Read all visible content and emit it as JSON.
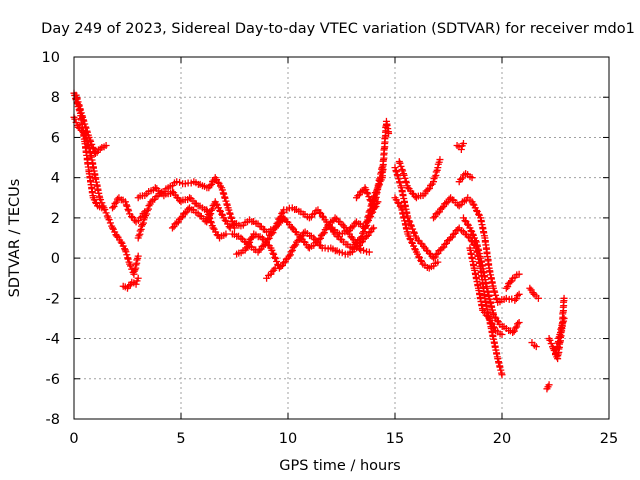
{
  "chart_data": {
    "type": "scatter",
    "title": "Day 249 of 2023, Sidereal Day-to-day VTEC variation (SDTVAR) for receiver mdo1",
    "xlabel": "GPS time / hours",
    "ylabel": "SDTVAR / TECUs",
    "xlim": [
      0,
      25
    ],
    "ylim": [
      -8,
      10
    ],
    "x_ticks": [
      0,
      5,
      10,
      15,
      20,
      25
    ],
    "y_ticks": [
      -8,
      -6,
      -4,
      -2,
      0,
      2,
      4,
      6,
      8,
      10
    ],
    "grid": true,
    "marker": "+",
    "color": "#ff0000",
    "series": [
      {
        "name": "SDTVAR",
        "tracks": [
          [
            [
              0.0,
              8.2
            ],
            [
              0.3,
              7.2
            ],
            [
              0.5,
              5.8
            ],
            [
              0.7,
              4.3
            ],
            [
              0.9,
              3.0
            ],
            [
              1.1,
              2.6
            ],
            [
              1.3,
              2.5
            ]
          ],
          [
            [
              0.0,
              7.0
            ],
            [
              0.2,
              6.5
            ],
            [
              0.5,
              6.2
            ],
            [
              0.8,
              5.1
            ],
            [
              1.0,
              4.0
            ],
            [
              1.2,
              3.0
            ],
            [
              1.4,
              2.5
            ],
            [
              1.6,
              2.0
            ],
            [
              1.8,
              1.5
            ],
            [
              2.0,
              1.1
            ],
            [
              2.2,
              0.8
            ],
            [
              2.4,
              0.4
            ],
            [
              2.6,
              -0.3
            ],
            [
              2.8,
              -0.8
            ],
            [
              3.0,
              0.1
            ]
          ],
          [
            [
              0.1,
              8.1
            ],
            [
              0.4,
              7.0
            ],
            [
              0.7,
              6.0
            ],
            [
              1.0,
              5.2
            ],
            [
              1.3,
              5.5
            ],
            [
              1.5,
              5.6
            ]
          ],
          [
            [
              2.3,
              -1.4
            ],
            [
              2.5,
              -1.5
            ],
            [
              2.7,
              -1.2
            ],
            [
              2.9,
              -1.3
            ],
            [
              3.0,
              -1.0
            ]
          ],
          [
            [
              1.8,
              2.5
            ],
            [
              2.1,
              3.0
            ],
            [
              2.4,
              2.8
            ],
            [
              2.6,
              2.2
            ],
            [
              2.9,
              1.8
            ],
            [
              3.1,
              2.0
            ],
            [
              3.3,
              2.3
            ]
          ],
          [
            [
              3.0,
              1.0
            ],
            [
              3.3,
              2.0
            ],
            [
              3.6,
              2.8
            ],
            [
              4.0,
              3.2
            ],
            [
              4.4,
              3.5
            ],
            [
              4.8,
              3.8
            ],
            [
              5.2,
              3.7
            ],
            [
              5.6,
              3.8
            ],
            [
              6.0,
              3.6
            ],
            [
              6.3,
              3.5
            ],
            [
              6.6,
              4.0
            ],
            [
              6.9,
              3.5
            ],
            [
              7.2,
              2.5
            ],
            [
              7.5,
              1.5
            ]
          ],
          [
            [
              3.0,
              3.0
            ],
            [
              3.4,
              3.2
            ],
            [
              3.8,
              3.5
            ],
            [
              4.2,
              3.1
            ],
            [
              4.6,
              3.3
            ],
            [
              5.0,
              2.8
            ],
            [
              5.4,
              3.0
            ],
            [
              5.8,
              2.6
            ],
            [
              6.2,
              2.4
            ],
            [
              6.5,
              1.5
            ],
            [
              6.8,
              1.0
            ],
            [
              7.1,
              1.2
            ]
          ],
          [
            [
              4.6,
              1.5
            ],
            [
              5.0,
              2.0
            ],
            [
              5.4,
              2.5
            ],
            [
              5.8,
              2.2
            ],
            [
              6.2,
              1.8
            ],
            [
              6.6,
              2.8
            ],
            [
              7.0,
              2.0
            ],
            [
              7.3,
              1.5
            ]
          ],
          [
            [
              7.4,
              1.2
            ],
            [
              7.8,
              1.0
            ],
            [
              8.2,
              0.6
            ],
            [
              8.6,
              0.3
            ],
            [
              9.0,
              0.8
            ],
            [
              9.4,
              1.5
            ],
            [
              9.8,
              2.0
            ],
            [
              10.2,
              1.5
            ],
            [
              10.6,
              1.0
            ],
            [
              11.0,
              0.5
            ],
            [
              11.4,
              0.8
            ],
            [
              11.8,
              1.5
            ],
            [
              12.2,
              2.0
            ],
            [
              12.6,
              1.6
            ],
            [
              13.0,
              1.0
            ],
            [
              13.4,
              0.4
            ],
            [
              13.8,
              0.3
            ]
          ],
          [
            [
              7.4,
              1.8
            ],
            [
              7.8,
              1.6
            ],
            [
              8.2,
              1.9
            ],
            [
              8.6,
              1.7
            ],
            [
              9.0,
              1.3
            ],
            [
              9.4,
              1.5
            ],
            [
              9.8,
              2.4
            ],
            [
              10.2,
              2.5
            ],
            [
              10.6,
              2.3
            ],
            [
              11.0,
              2.0
            ],
            [
              11.4,
              2.4
            ],
            [
              11.8,
              1.8
            ],
            [
              12.2,
              1.2
            ],
            [
              12.6,
              0.8
            ],
            [
              13.0,
              0.5
            ],
            [
              13.4,
              1.0
            ],
            [
              13.8,
              2.0
            ],
            [
              14.2,
              2.8
            ]
          ],
          [
            [
              7.6,
              0.2
            ],
            [
              8.0,
              0.4
            ],
            [
              8.4,
              1.2
            ],
            [
              8.8,
              1.0
            ],
            [
              9.2,
              0.5
            ],
            [
              9.6,
              -0.5
            ],
            [
              10.0,
              0.0
            ],
            [
              10.4,
              0.8
            ],
            [
              10.8,
              1.3
            ],
            [
              11.2,
              1.0
            ],
            [
              11.6,
              0.5
            ],
            [
              12.0,
              0.5
            ],
            [
              12.4,
              0.3
            ],
            [
              12.8,
              0.2
            ],
            [
              13.2,
              0.5
            ],
            [
              13.6,
              1.0
            ],
            [
              14.0,
              1.5
            ]
          ],
          [
            [
              9.0,
              -1.0
            ],
            [
              9.2,
              -0.8
            ],
            [
              9.4,
              -0.5
            ]
          ],
          [
            [
              12.0,
              1.5
            ],
            [
              12.4,
              1.2
            ],
            [
              12.8,
              1.3
            ],
            [
              13.2,
              1.8
            ],
            [
              13.6,
              1.5
            ],
            [
              14.0,
              3.0
            ],
            [
              14.4,
              4.0
            ],
            [
              14.6,
              6.8
            ],
            [
              14.7,
              6.2
            ]
          ],
          [
            [
              13.2,
              3.0
            ],
            [
              13.6,
              3.5
            ],
            [
              14.0,
              2.5
            ],
            [
              14.2,
              3.5
            ],
            [
              14.4,
              4.5
            ]
          ],
          [
            [
              15.0,
              4.5
            ],
            [
              15.3,
              3.5
            ],
            [
              15.6,
              2.0
            ],
            [
              16.0,
              1.0
            ],
            [
              16.4,
              0.5
            ],
            [
              16.8,
              0.0
            ],
            [
              17.2,
              0.5
            ],
            [
              17.6,
              1.0
            ],
            [
              18.0,
              1.5
            ],
            [
              18.2,
              1.3
            ],
            [
              18.5,
              1.0
            ],
            [
              18.8,
              0.5
            ],
            [
              19.0,
              -0.5
            ],
            [
              19.2,
              -2.0
            ],
            [
              19.5,
              -3.5
            ],
            [
              19.8,
              -5.0
            ],
            [
              20.0,
              -5.8
            ]
          ],
          [
            [
              15.0,
              3.0
            ],
            [
              15.3,
              2.5
            ],
            [
              15.6,
              1.2
            ],
            [
              16.0,
              0.3
            ],
            [
              16.3,
              -0.3
            ],
            [
              16.6,
              -0.5
            ],
            [
              17.0,
              -0.2
            ]
          ],
          [
            [
              15.2,
              4.8
            ],
            [
              15.4,
              4.2
            ],
            [
              15.6,
              3.5
            ],
            [
              16.0,
              3.0
            ],
            [
              16.4,
              3.2
            ],
            [
              16.8,
              3.8
            ],
            [
              17.0,
              4.5
            ],
            [
              17.1,
              4.9
            ]
          ],
          [
            [
              16.8,
              2.0
            ],
            [
              17.2,
              2.5
            ],
            [
              17.6,
              3.0
            ],
            [
              18.0,
              2.6
            ],
            [
              18.4,
              3.0
            ],
            [
              18.6,
              2.8
            ],
            [
              19.0,
              2.0
            ],
            [
              19.2,
              1.0
            ],
            [
              19.4,
              -0.5
            ],
            [
              19.6,
              -1.5
            ],
            [
              19.8,
              -2.2
            ],
            [
              20.2,
              -2.0
            ],
            [
              20.6,
              -2.1
            ],
            [
              20.8,
              -1.8
            ]
          ],
          [
            [
              18.0,
              3.8
            ],
            [
              18.3,
              4.2
            ],
            [
              18.6,
              4.0
            ]
          ],
          [
            [
              18.2,
              2.0
            ],
            [
              18.5,
              1.5
            ],
            [
              18.8,
              0.8
            ],
            [
              19.0,
              0.0
            ],
            [
              19.3,
              -1.5
            ],
            [
              19.6,
              -2.8
            ],
            [
              19.9,
              -3.3
            ],
            [
              20.2,
              -3.5
            ],
            [
              20.5,
              -3.7
            ],
            [
              20.8,
              -3.2
            ]
          ],
          [
            [
              18.5,
              0.5
            ],
            [
              18.7,
              -0.5
            ],
            [
              18.9,
              -1.5
            ],
            [
              19.1,
              -2.6
            ],
            [
              19.4,
              -3.0
            ],
            [
              19.7,
              -3.6
            ],
            [
              20.0,
              -3.8
            ]
          ],
          [
            [
              17.9,
              5.6
            ],
            [
              18.1,
              5.4
            ],
            [
              18.2,
              5.7
            ]
          ],
          [
            [
              20.2,
              -1.5
            ],
            [
              20.5,
              -1.0
            ],
            [
              20.8,
              -0.8
            ]
          ],
          [
            [
              21.3,
              -1.5
            ],
            [
              21.5,
              -1.8
            ],
            [
              21.7,
              -2.0
            ]
          ],
          [
            [
              21.4,
              -4.2
            ],
            [
              21.6,
              -4.4
            ]
          ],
          [
            [
              22.1,
              -6.5
            ],
            [
              22.2,
              -6.3
            ]
          ],
          [
            [
              22.2,
              -4.0
            ],
            [
              22.4,
              -4.5
            ],
            [
              22.6,
              -5.0
            ],
            [
              22.8,
              -3.5
            ],
            [
              22.9,
              -2.0
            ]
          ],
          [
            [
              22.5,
              -4.8
            ],
            [
              22.7,
              -3.8
            ],
            [
              22.9,
              -3.0
            ]
          ]
        ]
      }
    ]
  }
}
